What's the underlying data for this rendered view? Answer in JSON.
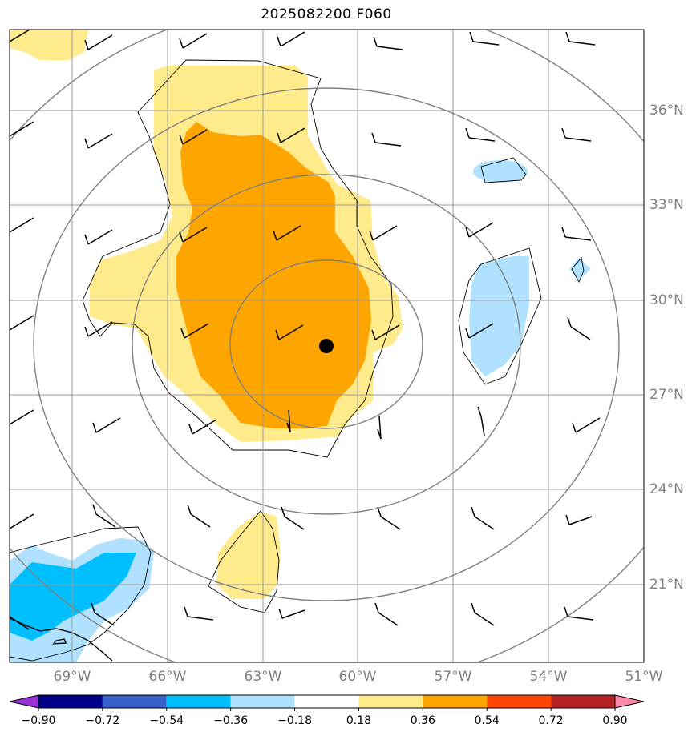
{
  "title": "2025082200 F060",
  "chart_data": {
    "type": "map",
    "title": "2025082200 F060",
    "lon_range": [
      -70.7,
      -51
    ],
    "lat_range": [
      18.3,
      38.3
    ],
    "lon_ticks": [
      "69°W",
      "66°W",
      "63°W",
      "60°W",
      "57°W",
      "54°W",
      "51°W"
    ],
    "lat_ticks": [
      "36°N",
      "33°N",
      "30°N",
      "27°N",
      "24°N",
      "21°N"
    ],
    "center_marker": {
      "lon": -61.0,
      "lat": 28.5
    },
    "range_rings_deg": [
      3.5,
      6.5,
      9.5
    ],
    "colorbar": {
      "levels": [
        -0.9,
        -0.72,
        -0.54,
        -0.36,
        -0.18,
        0.18,
        0.36,
        0.54,
        0.72,
        0.9
      ],
      "labels": [
        "−0.90",
        "−0.72",
        "−0.54",
        "−0.36",
        "−0.18",
        "0.18",
        "0.36",
        "0.54",
        "0.72",
        "0.90"
      ],
      "colors": [
        "#9b30d9",
        "#00008b",
        "#3a5fcd",
        "#00bfff",
        "#b0e2ff",
        "#ffffff",
        "#ffeb8c",
        "#ffa500",
        "#ff4500",
        "#b22222",
        "#ff88aa"
      ],
      "extend": "both"
    }
  }
}
